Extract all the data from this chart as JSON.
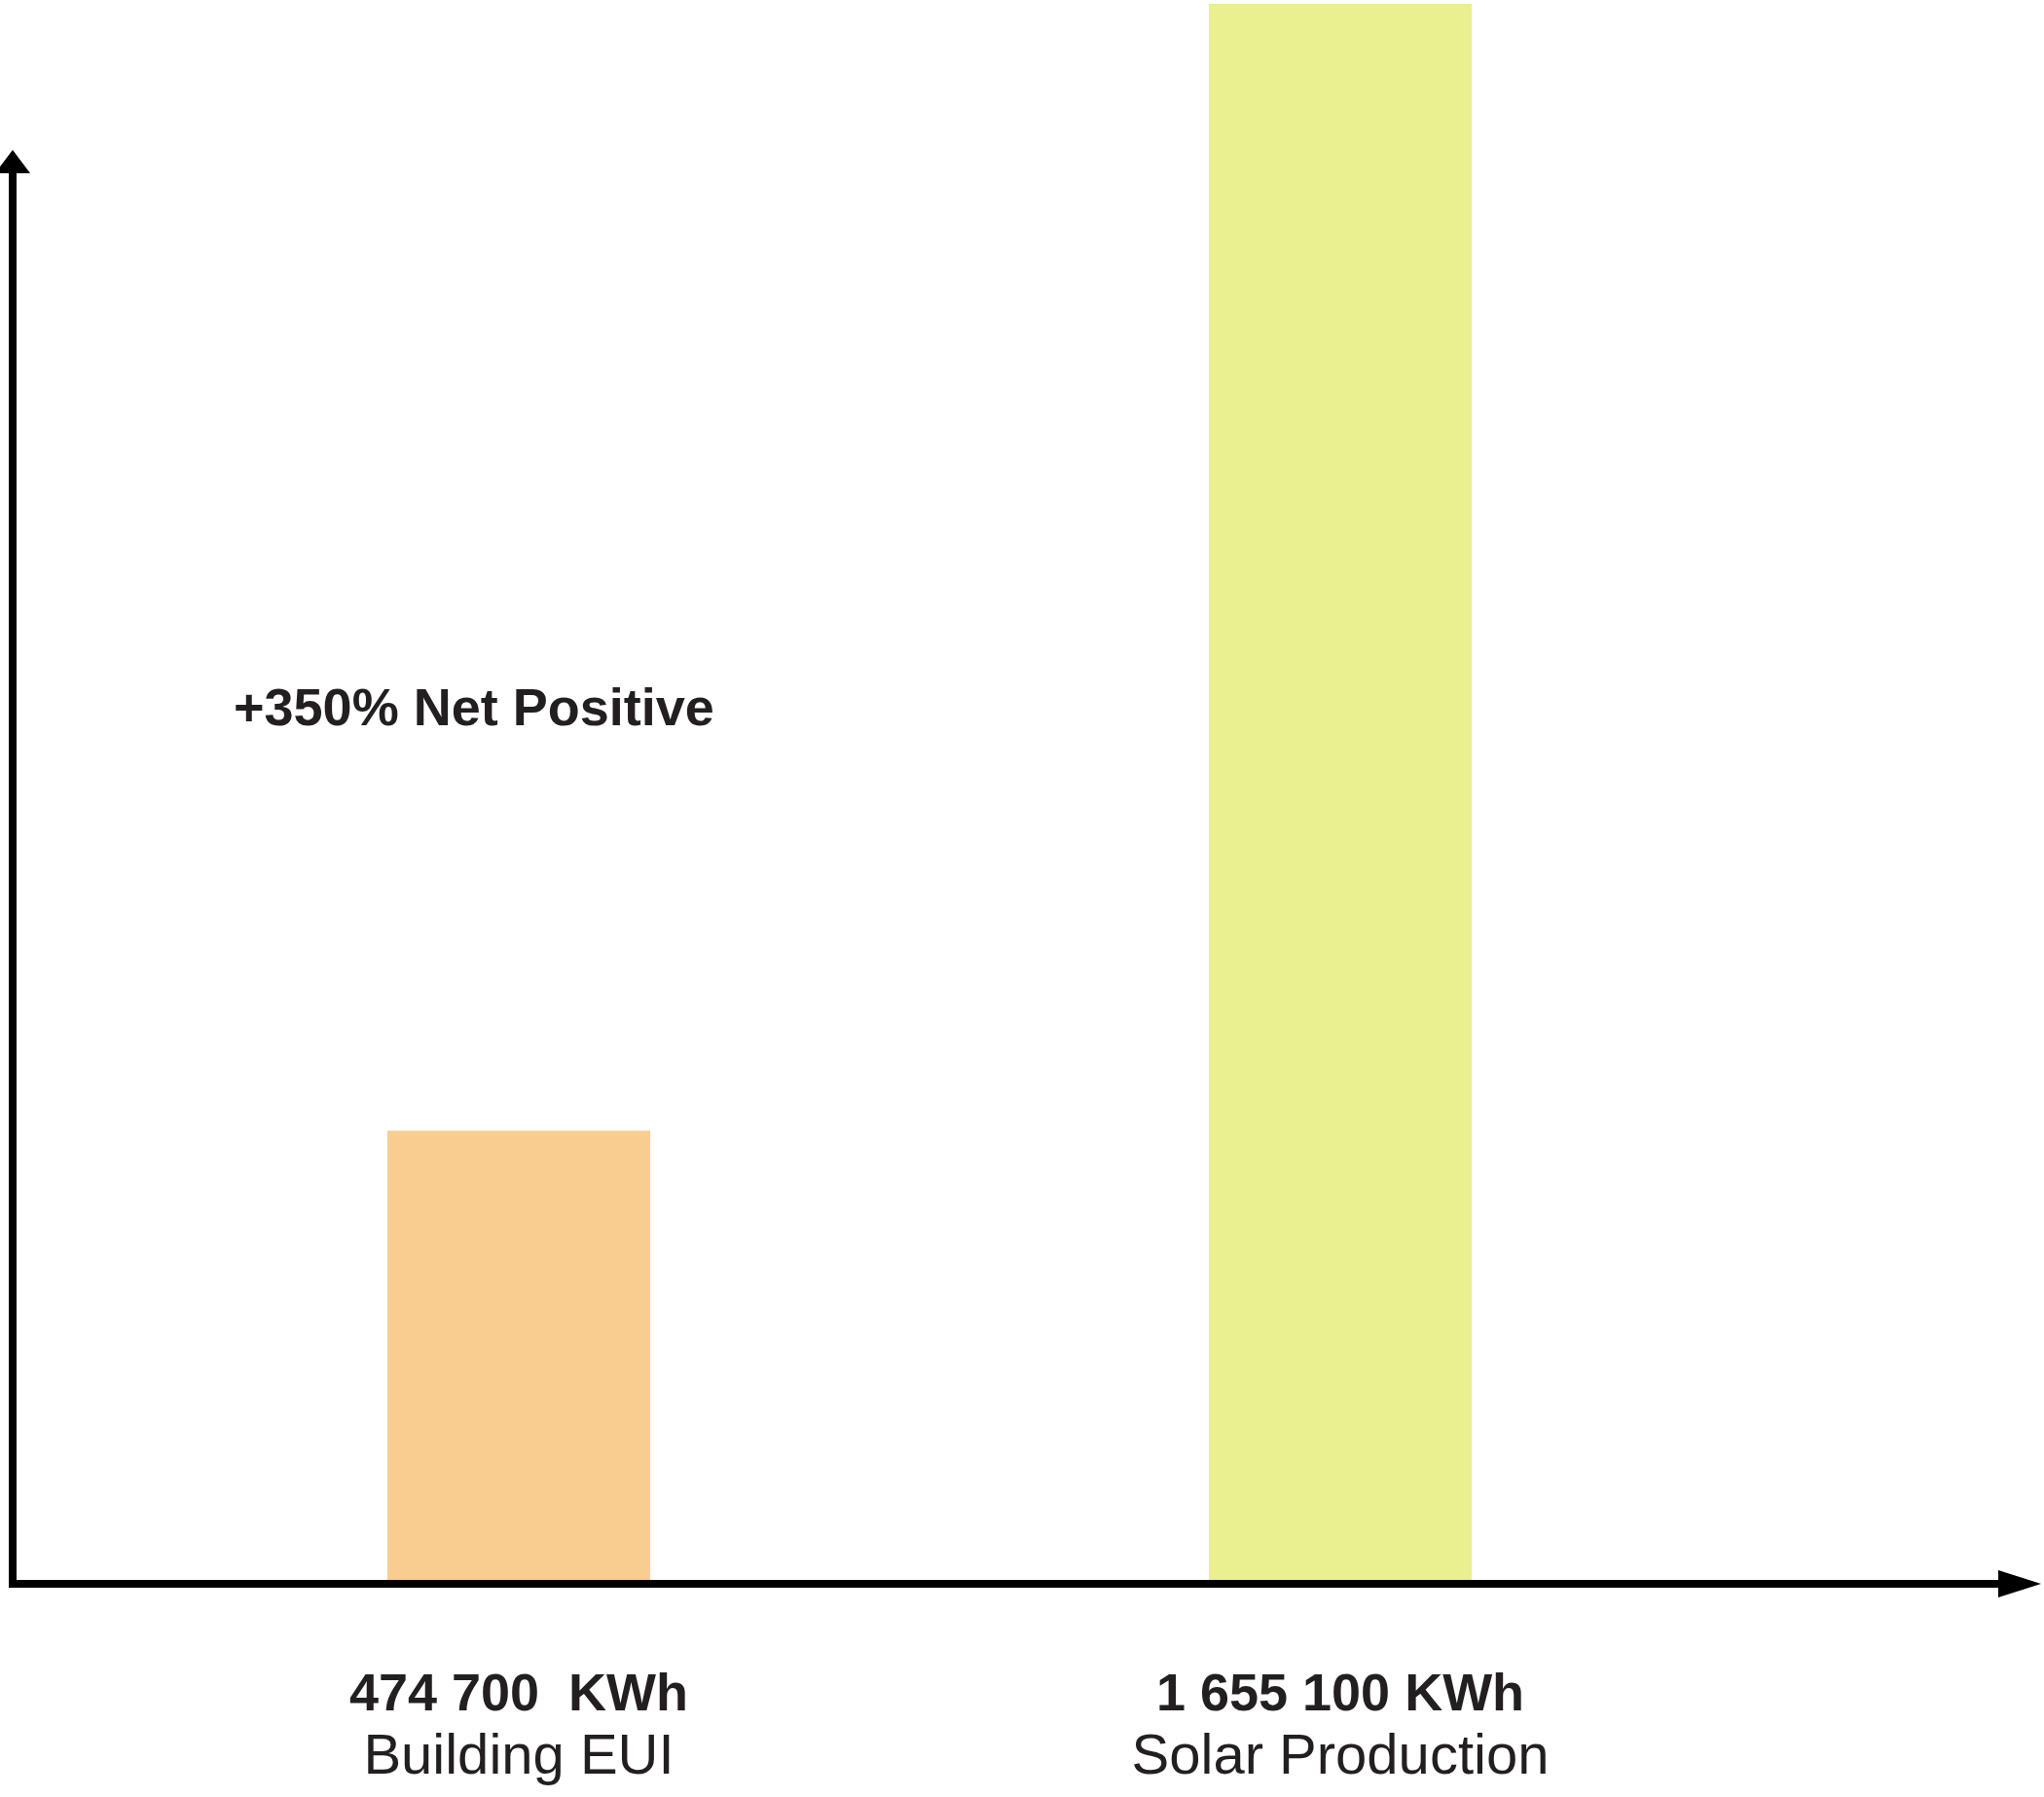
{
  "chart_data": {
    "type": "bar",
    "categories": [
      "Building EUI",
      "Solar Production"
    ],
    "values": [
      474700,
      1655100
    ],
    "value_labels": [
      "474 700  KWh",
      "1 655 100 KWh"
    ],
    "colors": [
      "#f8cd8f",
      "#eaef90"
    ],
    "annotations": [
      "+350% Net Positive"
    ]
  }
}
